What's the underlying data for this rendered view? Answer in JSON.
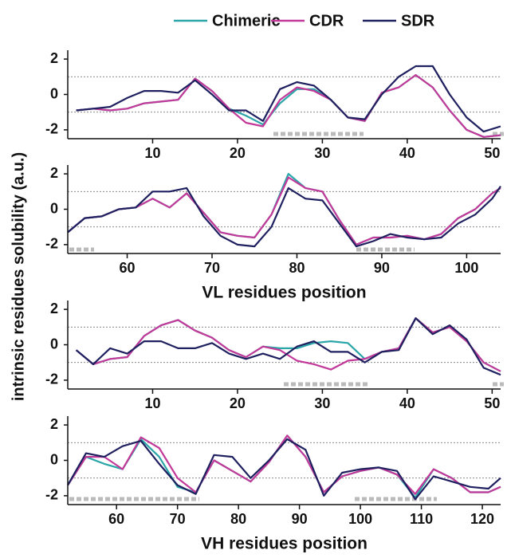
{
  "chart_data": [
    {
      "type": "line",
      "y_label": "intrinsic residues solubility (a.u.)",
      "x": [
        1,
        3,
        5,
        7,
        9,
        11,
        13,
        15,
        17,
        19,
        21,
        23,
        25,
        27,
        29,
        31,
        33,
        35,
        37,
        39,
        41,
        43,
        45,
        47,
        49,
        51
      ],
      "series": [
        {
          "name": "Chimeric",
          "color": "#2aa5a8",
          "values": [
            -0.9,
            -0.8,
            -0.9,
            -0.8,
            -0.5,
            -0.4,
            -0.3,
            0.9,
            0.2,
            -0.8,
            -1.2,
            -1.7,
            -0.5,
            0.3,
            0.3,
            -0.3,
            -1.3,
            -1.5,
            0.1,
            0.4,
            1.1,
            0.4,
            -0.9,
            -2.0,
            -2.4,
            -2.3
          ]
        },
        {
          "name": "CDR",
          "color": "#c2399a",
          "values": [
            -0.9,
            -0.8,
            -0.9,
            -0.8,
            -0.5,
            -0.4,
            -0.3,
            0.9,
            0.2,
            -0.8,
            -1.6,
            -1.8,
            -0.3,
            0.4,
            0.2,
            -0.3,
            -1.3,
            -1.5,
            0.1,
            0.4,
            1.1,
            0.4,
            -0.9,
            -2.0,
            -2.4,
            -2.3
          ]
        },
        {
          "name": "SDR",
          "color": "#1f2060",
          "values": [
            -0.9,
            -0.8,
            -0.7,
            -0.2,
            0.2,
            0.2,
            0.1,
            0.8,
            0.0,
            -0.9,
            -0.9,
            -1.5,
            0.3,
            0.7,
            0.5,
            -0.3,
            -1.3,
            -1.4,
            0.0,
            1.0,
            1.6,
            1.6,
            0.0,
            -1.3,
            -2.1,
            -1.8
          ]
        }
      ],
      "xlim": [
        0,
        51
      ],
      "xticks": [
        10,
        20,
        30,
        40,
        50
      ],
      "ylim": [
        -2.5,
        2.5
      ],
      "yticks": [
        -2,
        0,
        2
      ],
      "reflines": [
        -1,
        1
      ]
    },
    {
      "type": "line",
      "x_label": "VL residues position",
      "x": [
        53,
        55,
        57,
        59,
        61,
        63,
        65,
        67,
        69,
        71,
        73,
        75,
        77,
        79,
        81,
        83,
        85,
        87,
        89,
        91,
        93,
        95,
        97,
        99,
        101,
        103,
        104
      ],
      "series": [
        {
          "name": "Chimeric",
          "color": "#2aa5a8",
          "values": [
            -1.3,
            -0.5,
            -0.4,
            0.0,
            0.1,
            0.6,
            0.1,
            0.9,
            -0.2,
            -1.3,
            -1.5,
            -1.6,
            -0.3,
            2.0,
            1.2,
            1.0,
            -0.6,
            -2.0,
            -1.6,
            -1.6,
            -1.5,
            -1.7,
            -1.4,
            -0.5,
            0.0,
            0.9,
            1.2
          ]
        },
        {
          "name": "CDR",
          "color": "#c2399a",
          "values": [
            -1.3,
            -0.5,
            -0.4,
            0.0,
            0.1,
            0.6,
            0.1,
            0.9,
            -0.2,
            -1.3,
            -1.5,
            -1.6,
            -0.3,
            1.8,
            1.2,
            1.0,
            -0.6,
            -2.0,
            -1.6,
            -1.6,
            -1.5,
            -1.7,
            -1.4,
            -0.5,
            0.0,
            0.9,
            1.2
          ]
        },
        {
          "name": "SDR",
          "color": "#1f2060",
          "values": [
            -1.3,
            -0.5,
            -0.4,
            0.0,
            0.1,
            1.0,
            1.0,
            1.2,
            -0.4,
            -1.5,
            -2.0,
            -2.1,
            -1.0,
            1.2,
            0.6,
            0.5,
            -0.8,
            -2.1,
            -1.8,
            -1.4,
            -1.6,
            -1.7,
            -1.6,
            -0.8,
            -0.3,
            0.6,
            1.3
          ]
        }
      ],
      "xlim": [
        53,
        104
      ],
      "xticks": [
        60,
        70,
        80,
        90,
        100
      ],
      "ylim": [
        -2.5,
        2.5
      ],
      "yticks": [
        -2,
        0,
        2
      ],
      "reflines": [
        -1,
        1
      ]
    },
    {
      "type": "line",
      "x": [
        1,
        3,
        5,
        7,
        9,
        11,
        13,
        15,
        17,
        19,
        21,
        23,
        25,
        27,
        29,
        31,
        33,
        35,
        37,
        39,
        41,
        43,
        45,
        47,
        49,
        51
      ],
      "series": [
        {
          "name": "Chimeric",
          "color": "#2aa5a8",
          "values": [
            -0.3,
            -1.1,
            -0.8,
            -0.7,
            0.5,
            1.1,
            1.4,
            0.8,
            0.4,
            -0.3,
            -0.7,
            -0.1,
            -0.2,
            -0.2,
            0.1,
            0.2,
            0.1,
            -0.8,
            -0.4,
            -0.2,
            1.5,
            0.7,
            1.0,
            0.2,
            -1.0,
            -1.5
          ]
        },
        {
          "name": "CDR",
          "color": "#c2399a",
          "values": [
            -0.3,
            -1.1,
            -0.8,
            -0.7,
            0.5,
            1.1,
            1.4,
            0.8,
            0.4,
            -0.3,
            -0.7,
            -0.1,
            -0.3,
            -0.9,
            -1.1,
            -1.4,
            -0.9,
            -0.8,
            -0.4,
            -0.2,
            1.5,
            0.7,
            1.0,
            0.2,
            -1.0,
            -1.5
          ]
        },
        {
          "name": "SDR",
          "color": "#1f2060",
          "values": [
            -0.3,
            -1.1,
            -0.2,
            -0.5,
            0.2,
            0.2,
            -0.2,
            -0.2,
            0.1,
            -0.5,
            -0.8,
            -0.5,
            -0.8,
            -0.1,
            0.2,
            -0.4,
            -0.4,
            -1.0,
            -0.4,
            -0.3,
            1.5,
            0.6,
            1.1,
            0.3,
            -1.3,
            -1.7
          ]
        }
      ],
      "xlim": [
        0,
        51
      ],
      "xticks": [
        10,
        20,
        30,
        40,
        50
      ],
      "ylim": [
        -2.5,
        2.5
      ],
      "yticks": [
        -2,
        0,
        2
      ],
      "reflines": [
        -1,
        1
      ]
    },
    {
      "type": "line",
      "x_label": "VH residues position",
      "x": [
        52,
        55,
        58,
        61,
        64,
        67,
        70,
        73,
        76,
        79,
        82,
        85,
        88,
        91,
        94,
        97,
        100,
        103,
        106,
        109,
        112,
        115,
        118,
        121,
        123
      ],
      "series": [
        {
          "name": "Chimeric",
          "color": "#2aa5a8",
          "values": [
            -1.4,
            0.2,
            -0.2,
            -0.5,
            1.2,
            0.2,
            -1.5,
            -1.8,
            0.0,
            -0.6,
            -1.2,
            -0.1,
            1.4,
            0.2,
            -1.8,
            -0.9,
            -0.6,
            -0.4,
            -0.8,
            -2.1,
            -0.5,
            -1.0,
            -1.8,
            -1.8,
            -1.5
          ]
        },
        {
          "name": "CDR",
          "color": "#c2399a",
          "values": [
            -1.4,
            0.2,
            0.2,
            -0.5,
            1.3,
            0.7,
            -1.0,
            -1.8,
            0.0,
            -0.6,
            -1.2,
            -0.1,
            1.4,
            0.2,
            -1.8,
            -0.9,
            -0.6,
            -0.4,
            -0.8,
            -1.9,
            -0.5,
            -1.0,
            -1.8,
            -1.8,
            -1.5
          ]
        },
        {
          "name": "SDR",
          "color": "#1f2060",
          "values": [
            -1.4,
            0.4,
            0.2,
            0.8,
            1.1,
            -0.2,
            -1.4,
            -1.9,
            0.3,
            0.2,
            -1.0,
            0.0,
            1.2,
            0.6,
            -2.0,
            -0.7,
            -0.5,
            -0.4,
            -0.6,
            -2.2,
            -0.9,
            -1.2,
            -1.5,
            -1.6,
            -1.0
          ]
        }
      ],
      "xlim": [
        52,
        123
      ],
      "xticks": [
        60,
        70,
        80,
        90,
        100,
        110,
        120
      ],
      "ylim": [
        -2.5,
        2.5
      ],
      "yticks": [
        -2,
        0,
        2
      ],
      "reflines": [
        -1,
        1
      ]
    }
  ]
}
